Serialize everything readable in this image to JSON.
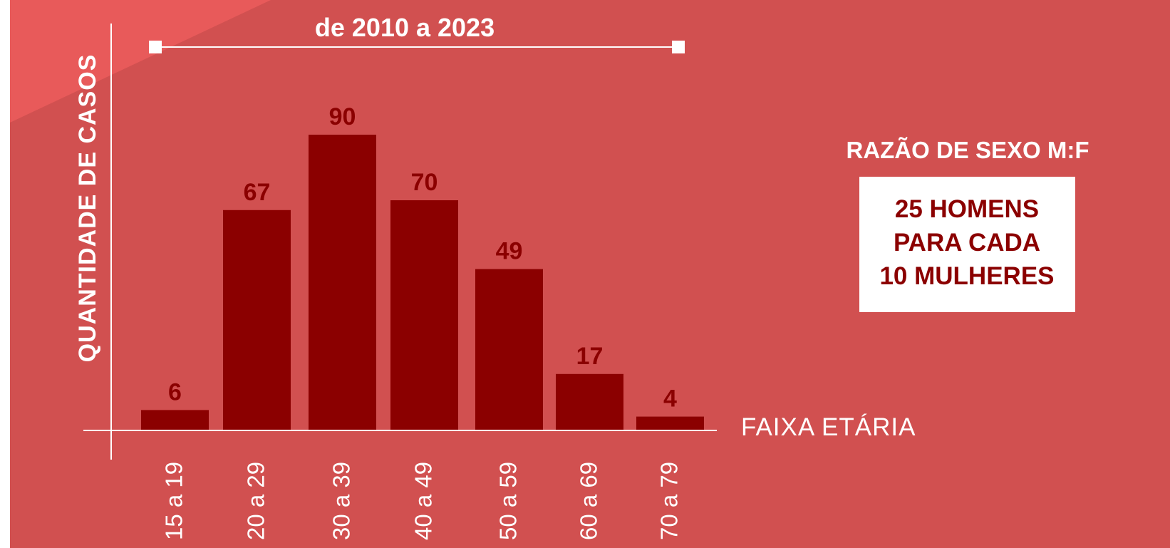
{
  "colors": {
    "background": "#d15050",
    "corner_accent": "#e85a5a",
    "bar": "#8b0000",
    "label": "#8b0000",
    "axis": "#ffffff",
    "box": "#ffffff",
    "box_text": "#8b0000"
  },
  "chart_data": {
    "type": "bar",
    "title": "de 2010 a 2023",
    "xlabel": "FAIXA ETÁRIA",
    "ylabel": "QUANTIDADE DE CASOS",
    "categories": [
      "15 a 19",
      "20 a 29",
      "30 a 39",
      "40 a 49",
      "50 a 59",
      "60 a 69",
      "70 a 79"
    ],
    "values": [
      6,
      67,
      90,
      70,
      49,
      17,
      4
    ],
    "ylim": [
      0,
      100
    ],
    "grid": false,
    "legend": "none"
  },
  "ratio_box": {
    "heading": "RAZÃO DE SEXO M:F",
    "lines": [
      "25 HOMENS",
      "PARA CADA",
      "10 MULHERES"
    ]
  }
}
